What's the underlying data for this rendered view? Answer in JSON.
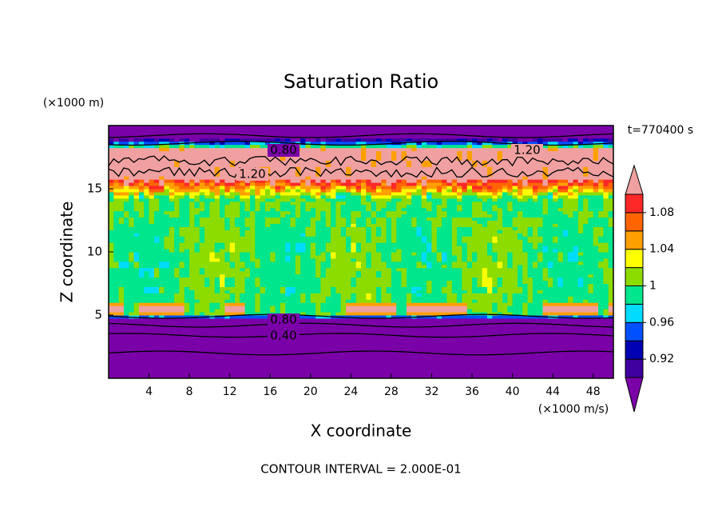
{
  "chart_data": {
    "type": "contour",
    "title": "Saturation Ratio",
    "x_label": "X coordinate",
    "y_label": "Z coordinate",
    "x_unit": "(×1000 m/s)",
    "y_unit": "(×1000 m)",
    "time_label": "t=770400 s",
    "footer": "CONTOUR INTERVAL = 2.000E-01",
    "xlim": [
      0,
      50
    ],
    "ylim": [
      0,
      20
    ],
    "xticks": [
      4,
      8,
      12,
      16,
      20,
      24,
      28,
      32,
      36,
      40,
      44,
      48
    ],
    "yticks": [
      5,
      10,
      15
    ],
    "colorbar": {
      "levels": [
        0.9,
        0.92,
        0.94,
        0.96,
        0.98,
        1,
        1.02,
        1.04,
        1.06,
        1.08,
        1.1
      ],
      "ticks": [
        0.92,
        0.96,
        1,
        1.04,
        1.08
      ],
      "colors": [
        "#7a00a8",
        "#4000a0",
        "#0000b4",
        "#0050ff",
        "#00dcff",
        "#00e68c",
        "#8cdc00",
        "#ffff00",
        "#ffa000",
        "#ff6400",
        "#ff2828",
        "#f0a0a0"
      ]
    },
    "contour_labels": [
      {
        "value": 0.8,
        "label": "0.80"
      },
      {
        "value": 1.2,
        "label": "1.20"
      },
      {
        "value": 1.2,
        "label": "1.20"
      },
      {
        "value": 0.8,
        "label": "0.80"
      },
      {
        "value": 0.4,
        "label": "0.40"
      }
    ]
  }
}
